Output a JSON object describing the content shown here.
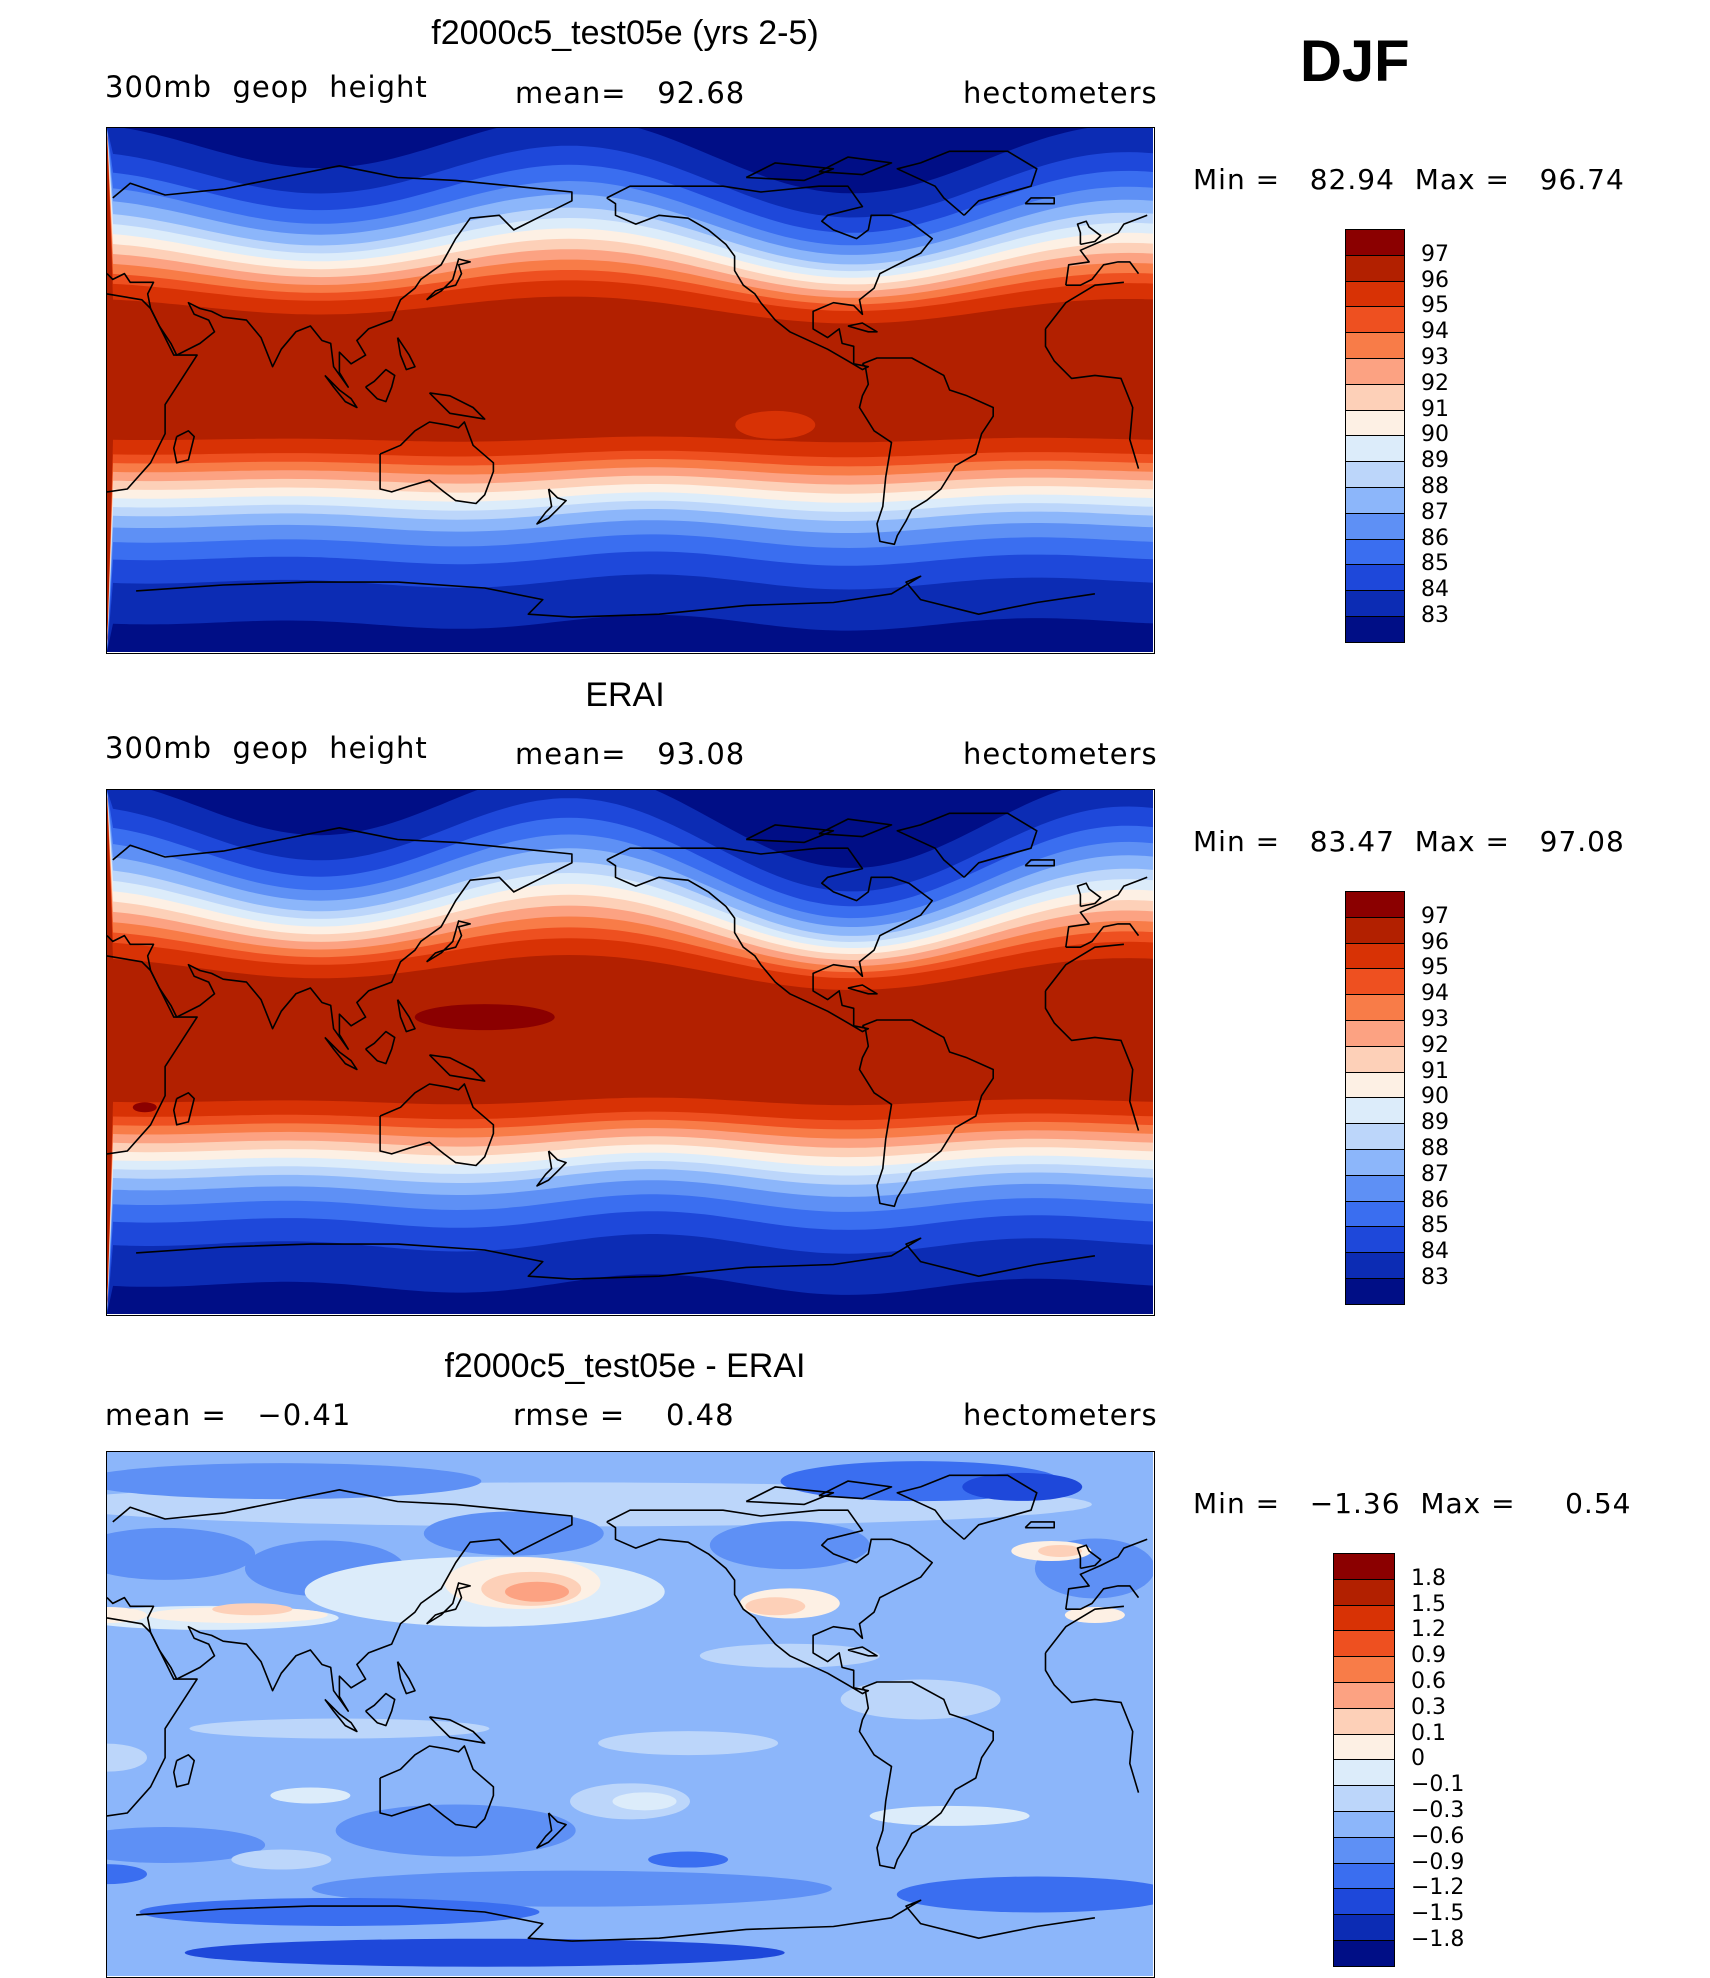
{
  "figure": {
    "season": "DJF",
    "panels": [
      {
        "title": "f2000c5_test05e (yrs 2-5)",
        "left_label": "300mb  geop  height",
        "center_label": "mean=   92.68",
        "right_label": "hectometers",
        "minmax": "Min =   82.94  Max =   96.74",
        "field": "model"
      },
      {
        "title": "ERAI",
        "left_label": "300mb  geop  height",
        "center_label": "mean=   93.08",
        "right_label": "hectometers",
        "minmax": "Min =   83.47  Max =   97.08",
        "field": "obs"
      },
      {
        "title": "f2000c5_test05e - ERAI",
        "left_label": "mean =   −0.41",
        "center_label": "rmse =    0.48",
        "right_label": "hectometers",
        "minmax": "Min =   −1.36  Max =     0.54",
        "field": "diff"
      }
    ]
  },
  "colorbars": {
    "abs": {
      "levels": [
        "97",
        "96",
        "95",
        "94",
        "93",
        "92",
        "91",
        "90",
        "89",
        "88",
        "87",
        "86",
        "85",
        "84",
        "83"
      ],
      "colors": [
        "#8b0000",
        "#b22000",
        "#d83205",
        "#ee5020",
        "#f87c48",
        "#fca282",
        "#fdd0b8",
        "#fdf0e4",
        "#dcecfa",
        "#bcd6fa",
        "#8cb6fa",
        "#5e90f5",
        "#3a6ef0",
        "#1e48da",
        "#0c2cb4",
        "#000e86"
      ]
    },
    "diff": {
      "levels": [
        "1.8",
        "1.5",
        "1.2",
        "0.9",
        "0.6",
        "0.3",
        "0.1",
        "0",
        "−0.1",
        "−0.3",
        "−0.6",
        "−0.9",
        "−1.2",
        "−1.5",
        "−1.8"
      ],
      "colors": [
        "#8b0000",
        "#b22000",
        "#d83205",
        "#ee5020",
        "#f87c48",
        "#fca282",
        "#fdd0b8",
        "#fdf0e4",
        "#dcecfa",
        "#bcd6fa",
        "#8cb6fa",
        "#5e90f5",
        "#3a6ef0",
        "#1e48da",
        "#0c2cb4",
        "#000e86"
      ]
    }
  }
}
